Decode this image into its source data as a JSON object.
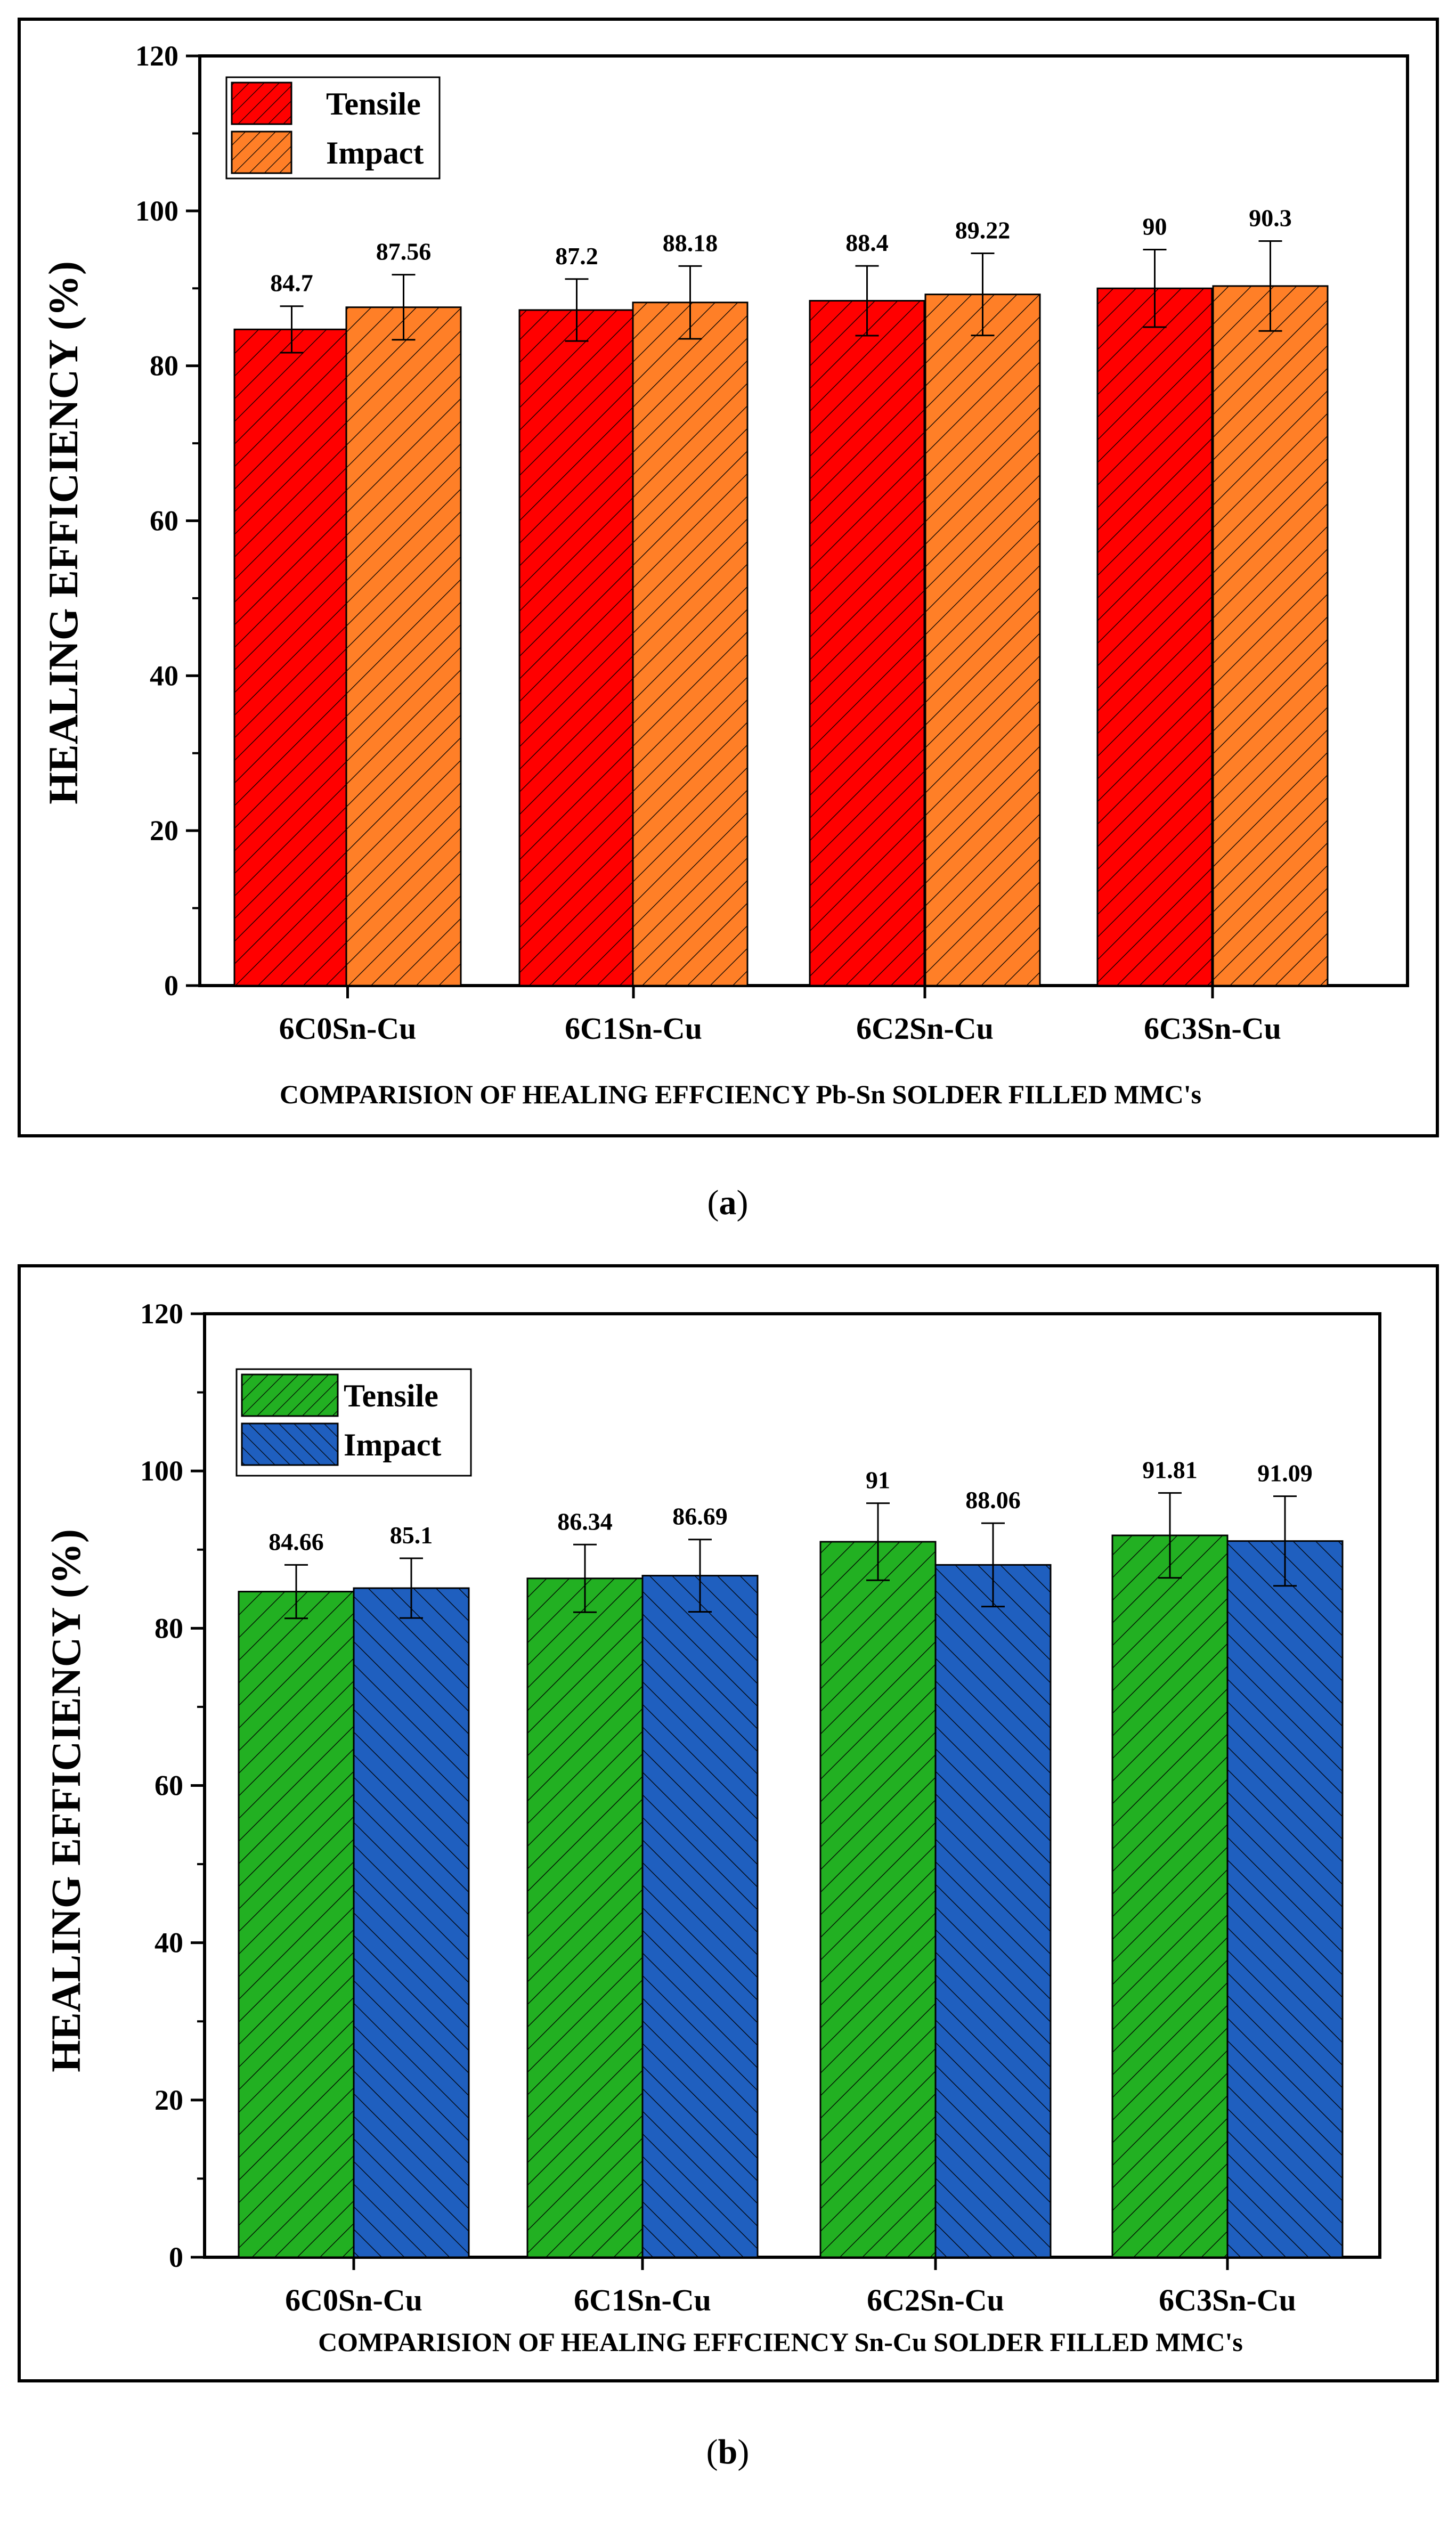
{
  "captions": {
    "a": "a",
    "b": "b"
  },
  "chart_data": [
    {
      "type": "bar",
      "panel": "a",
      "categories": [
        "6C0Sn-Cu",
        "6C1Sn-Cu",
        "6C2Sn-Cu",
        "6C3Sn-Cu"
      ],
      "series": [
        {
          "name": "Tensile",
          "values": [
            84.7,
            87.2,
            88.4,
            90
          ],
          "labels": [
            "84.7",
            "87.2",
            "88.4",
            "90"
          ],
          "errors": [
            3,
            4,
            4.5,
            5
          ],
          "color": "#ff0000",
          "hatch": "forward"
        },
        {
          "name": "Impact",
          "values": [
            87.56,
            88.18,
            89.22,
            90.3
          ],
          "labels": [
            "87.56",
            "88.18",
            "89.22",
            "90.3"
          ],
          "errors": [
            4.2,
            4.7,
            5.3,
            5.8
          ],
          "color": "#ff7f27",
          "hatch": "forward"
        }
      ],
      "title": "",
      "xlabel": "COMPARISION OF HEALING EFFCIENCY Pb-Sn SOLDER FILLED MMC's",
      "ylabel": "HEALING EFFICIENCY (%)",
      "ylim": [
        0,
        120
      ],
      "yticks": [
        0,
        20,
        40,
        60,
        80,
        100,
        120
      ],
      "legend": "top-left",
      "grid": false
    },
    {
      "type": "bar",
      "panel": "b",
      "categories": [
        "6C0Sn-Cu",
        "6C1Sn-Cu",
        "6C2Sn-Cu",
        "6C3Sn-Cu"
      ],
      "series": [
        {
          "name": "Tensile",
          "values": [
            84.66,
            86.34,
            91,
            91.81
          ],
          "labels": [
            "84.66",
            "86.34",
            "91",
            "91.81"
          ],
          "errors": [
            3.4,
            4.3,
            4.9,
            5.4
          ],
          "color": "#22b022",
          "hatch": "forward"
        },
        {
          "name": "Impact",
          "values": [
            85.1,
            86.69,
            88.06,
            91.09
          ],
          "labels": [
            "85.1",
            "86.69",
            "88.06",
            "91.09"
          ],
          "errors": [
            3.8,
            4.6,
            5.3,
            5.7
          ],
          "color": "#1f5fbf",
          "hatch": "backward"
        }
      ],
      "title": "",
      "xlabel": "COMPARISION OF HEALING EFFCIENCY Sn-Cu SOLDER FILLED MMC's",
      "ylabel": "HEALING EFFICIENCY (%)",
      "ylim": [
        0,
        120
      ],
      "yticks": [
        0,
        20,
        40,
        60,
        80,
        100,
        120
      ],
      "legend": "top-left",
      "grid": false
    }
  ]
}
